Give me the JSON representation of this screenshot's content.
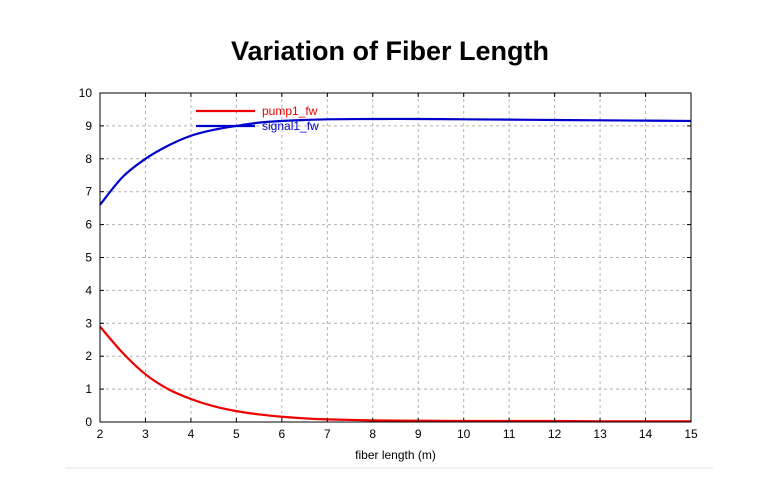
{
  "chart_data": {
    "type": "line",
    "title": "Variation of Fiber Length",
    "xlabel": "fiber length (m)",
    "ylabel": "",
    "xlim": [
      2,
      15
    ],
    "ylim": [
      0,
      10
    ],
    "xticks": [
      2,
      3,
      4,
      5,
      6,
      7,
      8,
      9,
      10,
      11,
      12,
      13,
      14,
      15
    ],
    "yticks": [
      0,
      1,
      2,
      3,
      4,
      5,
      6,
      7,
      8,
      9,
      10
    ],
    "grid": true,
    "legend": "top-left",
    "series": [
      {
        "name": "pump1_fw",
        "color": "#ee0000",
        "x": [
          2,
          2.5,
          3,
          3.5,
          4,
          4.5,
          5,
          5.5,
          6,
          6.5,
          7,
          8,
          9,
          10,
          11,
          12,
          13,
          14,
          15
        ],
        "y": [
          2.9,
          2.1,
          1.45,
          1.0,
          0.7,
          0.48,
          0.33,
          0.23,
          0.16,
          0.11,
          0.08,
          0.05,
          0.04,
          0.03,
          0.03,
          0.03,
          0.02,
          0.02,
          0.02
        ]
      },
      {
        "name": "signal1_fw",
        "color": "#0000cc",
        "x": [
          2,
          2.5,
          3,
          3.5,
          4,
          4.5,
          5,
          5.5,
          6,
          6.5,
          7,
          8,
          9,
          10,
          11,
          12,
          13,
          14,
          15
        ],
        "y": [
          6.6,
          7.45,
          8.0,
          8.4,
          8.7,
          8.88,
          9.0,
          9.1,
          9.15,
          9.18,
          9.2,
          9.21,
          9.21,
          9.2,
          9.19,
          9.18,
          9.17,
          9.16,
          9.15
        ]
      }
    ]
  }
}
